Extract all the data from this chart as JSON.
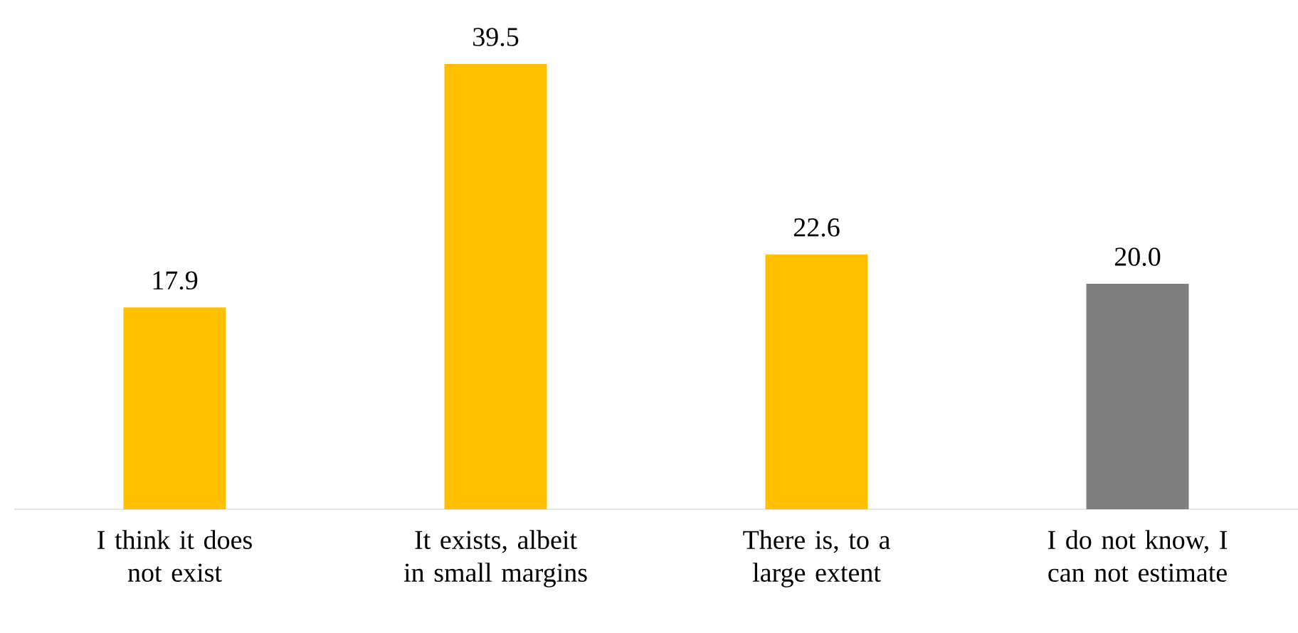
{
  "chart_data": {
    "type": "bar",
    "categories": [
      "I think it does not exist",
      "It exists, albeit in small margins",
      "There is, to a large extent",
      "I do not know, I can not estimate"
    ],
    "values": [
      17.9,
      39.5,
      22.6,
      20.0
    ],
    "colors": [
      "#ffc000",
      "#ffc000",
      "#ffc000",
      "#7f7f7f"
    ],
    "value_labels": [
      "17.9",
      "39.5",
      "22.6",
      "20.0"
    ],
    "tick_labels": "x"
  }
}
